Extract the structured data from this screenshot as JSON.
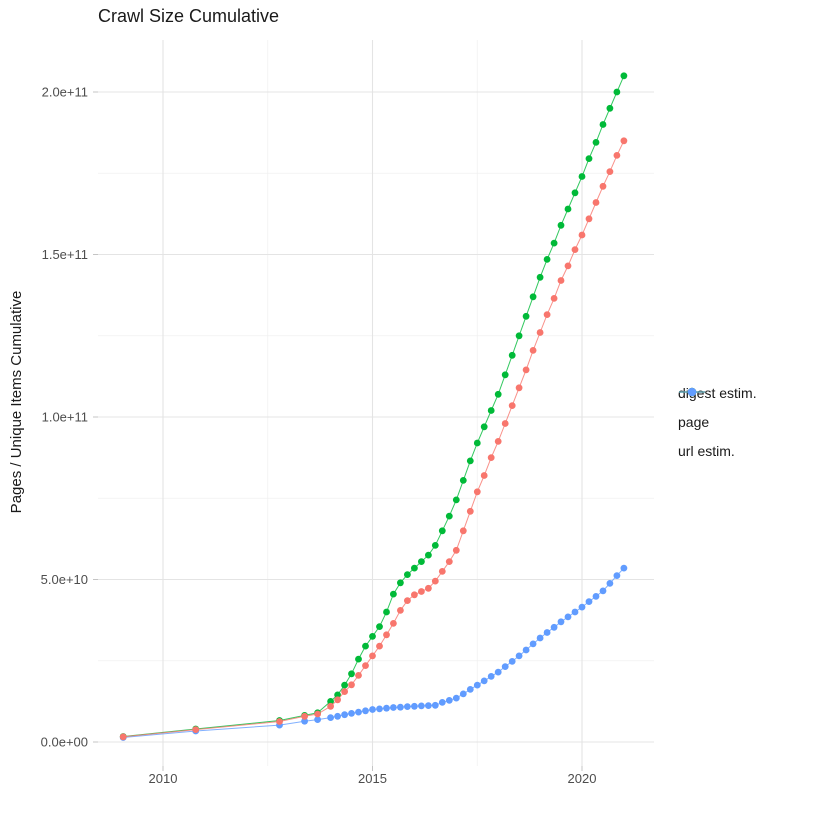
{
  "title": "Crawl Size Cumulative",
  "y_axis": {
    "title": "Pages / Unique Items Cumulative",
    "tick_labels": [
      "0.0e+00",
      "5.0e+10",
      "1.0e+11",
      "1.5e+11",
      "2.0e+11"
    ],
    "tick_values_e9": [
      0,
      50,
      100,
      150,
      200
    ],
    "minor_values_e9": [
      25,
      75,
      125,
      175
    ]
  },
  "x_axis": {
    "title": "",
    "tick_labels": [
      "2010",
      "2015",
      "2020"
    ],
    "tick_values": [
      2010,
      2015,
      2020
    ],
    "minor_values": [
      2012.5,
      2017.5
    ]
  },
  "colors": {
    "digest": "#F8766D",
    "page": "#00BA38",
    "url": "#619CFF",
    "grid_major": "#E4E4E4",
    "grid_minor": "#F0F0F0",
    "tick": "#C4C4C4",
    "tick_text": "#4D4D4D",
    "title_text": "#1A1A1A"
  },
  "chart_data": {
    "type": "line",
    "style": "line-with-points",
    "title": "Crawl Size Cumulative",
    "xlabel": "",
    "ylabel": "Pages / Unique Items Cumulative",
    "x_range": [
      2008.5,
      2021.7
    ],
    "y_range": [
      0,
      215000000000.0
    ],
    "grid": true,
    "legend_position": "right",
    "units_note": "point values given as [year, billions]; 1 billion = 1e9",
    "series": [
      {
        "name": "digest estim.",
        "color": "#F8766D",
        "points_year_e9": [
          [
            2009.05,
            1.6
          ],
          [
            2010.78,
            3.8
          ],
          [
            2012.78,
            6.3
          ],
          [
            2013.38,
            7.9
          ],
          [
            2013.69,
            8.6
          ],
          [
            2014.0,
            11.0
          ],
          [
            2014.167,
            13.0
          ],
          [
            2014.333,
            15.5
          ],
          [
            2014.5,
            17.6
          ],
          [
            2014.667,
            20.5
          ],
          [
            2014.833,
            23.5
          ],
          [
            2015.0,
            26.5
          ],
          [
            2015.167,
            29.5
          ],
          [
            2015.333,
            33.0
          ],
          [
            2015.5,
            36.5
          ],
          [
            2015.667,
            40.5
          ],
          [
            2015.833,
            43.5
          ],
          [
            2016.0,
            45.3
          ],
          [
            2016.167,
            46.3
          ],
          [
            2016.333,
            47.3
          ],
          [
            2016.5,
            49.5
          ],
          [
            2016.667,
            52.5
          ],
          [
            2016.833,
            55.5
          ],
          [
            2017.0,
            59.0
          ],
          [
            2017.167,
            65.0
          ],
          [
            2017.333,
            71.0
          ],
          [
            2017.5,
            77.0
          ],
          [
            2017.667,
            82.0
          ],
          [
            2017.833,
            87.5
          ],
          [
            2018.0,
            92.5
          ],
          [
            2018.167,
            98.0
          ],
          [
            2018.333,
            103.5
          ],
          [
            2018.5,
            109.0
          ],
          [
            2018.667,
            114.5
          ],
          [
            2018.833,
            120.5
          ],
          [
            2019.0,
            126.0
          ],
          [
            2019.167,
            131.5
          ],
          [
            2019.333,
            136.5
          ],
          [
            2019.5,
            142.0
          ],
          [
            2019.667,
            146.5
          ],
          [
            2019.833,
            151.5
          ],
          [
            2020.0,
            156.0
          ],
          [
            2020.167,
            161.0
          ],
          [
            2020.333,
            166.0
          ],
          [
            2020.5,
            171.0
          ],
          [
            2020.667,
            175.5
          ],
          [
            2020.833,
            180.5
          ],
          [
            2021.0,
            185.0
          ]
        ]
      },
      {
        "name": "page",
        "color": "#00BA38",
        "points_year_e9": [
          [
            2009.05,
            1.7
          ],
          [
            2010.78,
            4.0
          ],
          [
            2012.78,
            6.6
          ],
          [
            2013.38,
            8.2
          ],
          [
            2013.69,
            9.0
          ],
          [
            2014.0,
            12.5
          ],
          [
            2014.167,
            14.5
          ],
          [
            2014.333,
            17.5
          ],
          [
            2014.5,
            21.0
          ],
          [
            2014.667,
            25.5
          ],
          [
            2014.833,
            29.5
          ],
          [
            2015.0,
            32.5
          ],
          [
            2015.167,
            35.5
          ],
          [
            2015.333,
            40.0
          ],
          [
            2015.5,
            45.5
          ],
          [
            2015.667,
            49.0
          ],
          [
            2015.833,
            51.5
          ],
          [
            2016.0,
            53.5
          ],
          [
            2016.167,
            55.5
          ],
          [
            2016.333,
            57.5
          ],
          [
            2016.5,
            60.5
          ],
          [
            2016.667,
            65.0
          ],
          [
            2016.833,
            69.5
          ],
          [
            2017.0,
            74.5
          ],
          [
            2017.167,
            80.5
          ],
          [
            2017.333,
            86.5
          ],
          [
            2017.5,
            92.0
          ],
          [
            2017.667,
            97.0
          ],
          [
            2017.833,
            102.0
          ],
          [
            2018.0,
            107.0
          ],
          [
            2018.167,
            113.0
          ],
          [
            2018.333,
            119.0
          ],
          [
            2018.5,
            125.0
          ],
          [
            2018.667,
            131.0
          ],
          [
            2018.833,
            137.0
          ],
          [
            2019.0,
            143.0
          ],
          [
            2019.167,
            148.5
          ],
          [
            2019.333,
            153.5
          ],
          [
            2019.5,
            159.0
          ],
          [
            2019.667,
            164.0
          ],
          [
            2019.833,
            169.0
          ],
          [
            2020.0,
            174.0
          ],
          [
            2020.167,
            179.5
          ],
          [
            2020.333,
            184.5
          ],
          [
            2020.5,
            190.0
          ],
          [
            2020.667,
            195.0
          ],
          [
            2020.833,
            200.0
          ],
          [
            2021.0,
            205.0
          ]
        ]
      },
      {
        "name": "url estim.",
        "color": "#619CFF",
        "points_year_e9": [
          [
            2009.05,
            1.4
          ],
          [
            2010.78,
            3.4
          ],
          [
            2012.78,
            5.2
          ],
          [
            2013.38,
            6.4
          ],
          [
            2013.69,
            6.9
          ],
          [
            2014.0,
            7.5
          ],
          [
            2014.167,
            7.9
          ],
          [
            2014.333,
            8.4
          ],
          [
            2014.5,
            8.8
          ],
          [
            2014.667,
            9.2
          ],
          [
            2014.833,
            9.6
          ],
          [
            2015.0,
            10.0
          ],
          [
            2015.167,
            10.2
          ],
          [
            2015.333,
            10.4
          ],
          [
            2015.5,
            10.6
          ],
          [
            2015.667,
            10.7
          ],
          [
            2015.833,
            10.9
          ],
          [
            2016.0,
            11.0
          ],
          [
            2016.167,
            11.1
          ],
          [
            2016.333,
            11.2
          ],
          [
            2016.5,
            11.3
          ],
          [
            2016.667,
            12.2
          ],
          [
            2016.833,
            12.8
          ],
          [
            2017.0,
            13.5
          ],
          [
            2017.167,
            14.8
          ],
          [
            2017.333,
            16.2
          ],
          [
            2017.5,
            17.5
          ],
          [
            2017.667,
            18.8
          ],
          [
            2017.833,
            20.2
          ],
          [
            2018.0,
            21.5
          ],
          [
            2018.167,
            23.2
          ],
          [
            2018.333,
            24.8
          ],
          [
            2018.5,
            26.5
          ],
          [
            2018.667,
            28.3
          ],
          [
            2018.833,
            30.2
          ],
          [
            2019.0,
            32.0
          ],
          [
            2019.167,
            33.7
          ],
          [
            2019.333,
            35.3
          ],
          [
            2019.5,
            37.0
          ],
          [
            2019.667,
            38.5
          ],
          [
            2019.833,
            40.0
          ],
          [
            2020.0,
            41.5
          ],
          [
            2020.167,
            43.2
          ],
          [
            2020.333,
            44.8
          ],
          [
            2020.5,
            46.5
          ],
          [
            2020.667,
            48.8
          ],
          [
            2020.833,
            51.2
          ],
          [
            2021.0,
            53.5
          ]
        ]
      }
    ]
  }
}
